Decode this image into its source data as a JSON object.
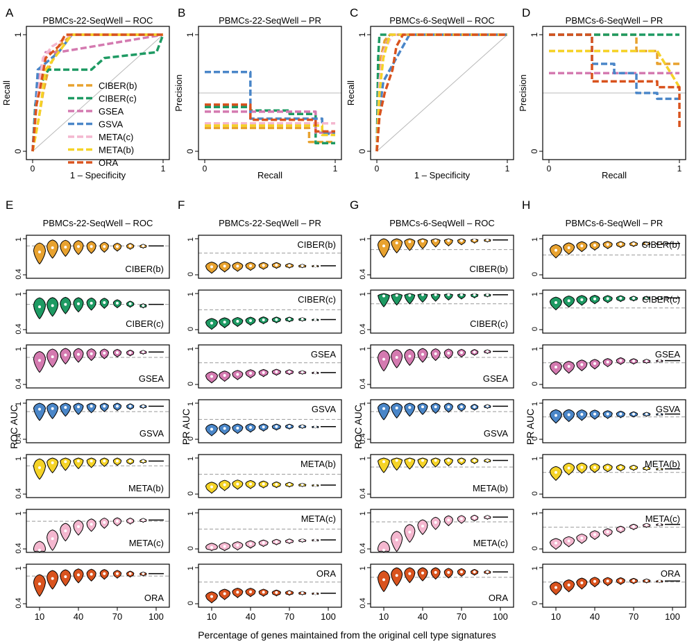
{
  "figure": {
    "xlabel": "Percentage of genes maintained from the original cell type signatures",
    "y_label_roc": "ROC AUC",
    "y_label_pr": "PR AUC"
  },
  "colors": {
    "CIBER(b)": "#e8a22f",
    "CIBER(c)": "#1e9a63",
    "GSEA": "#d47ab0",
    "GSVA": "#4a86c8",
    "META(c)": "#f4b7cf",
    "META(b)": "#f5d327",
    "ORA": "#d9531e"
  },
  "chart_data": [
    {
      "panel": "A",
      "type": "line",
      "title": "PBMCs-22-SeqWell – ROC",
      "xlabel": "1 – Specificity",
      "ylabel": "Recall",
      "xlim": [
        0,
        1
      ],
      "ylim": [
        0,
        1
      ],
      "xticks": [
        "0",
        "1"
      ],
      "yticks": [
        "0",
        "1"
      ],
      "legend": "bottom-right",
      "reference": "diagonal",
      "series": [
        {
          "name": "CIBER(b)",
          "x": [
            0,
            0.05,
            0.08,
            0.12,
            0.2,
            0.3,
            0.6,
            0.95,
            1
          ],
          "y": [
            0,
            0.3,
            0.5,
            0.7,
            0.9,
            1,
            1,
            1,
            1
          ]
        },
        {
          "name": "CIBER(c)",
          "x": [
            0,
            0.02,
            0.05,
            0.12,
            0.45,
            0.55,
            0.95,
            1
          ],
          "y": [
            0,
            0.4,
            0.55,
            0.7,
            0.7,
            0.8,
            0.85,
            1
          ]
        },
        {
          "name": "GSEA",
          "x": [
            0,
            0.02,
            0.06,
            0.1,
            0.2,
            1
          ],
          "y": [
            0,
            0.3,
            0.7,
            0.85,
            0.85,
            1
          ]
        },
        {
          "name": "GSVA",
          "x": [
            0,
            0.02,
            0.04,
            0.2,
            0.3,
            1
          ],
          "y": [
            0,
            0.35,
            0.7,
            0.85,
            1,
            1
          ]
        },
        {
          "name": "META(c)",
          "x": [
            0,
            0.03,
            0.08,
            0.15,
            0.3,
            1
          ],
          "y": [
            0,
            0.4,
            0.8,
            0.9,
            1,
            1
          ]
        },
        {
          "name": "META(b)",
          "x": [
            0,
            0.05,
            0.1,
            0.2,
            0.3,
            1
          ],
          "y": [
            0,
            0.3,
            0.7,
            0.85,
            1,
            1
          ]
        },
        {
          "name": "ORA",
          "x": [
            0,
            0.03,
            0.06,
            0.1,
            0.2,
            0.25,
            1
          ],
          "y": [
            0,
            0.4,
            0.55,
            0.8,
            0.9,
            1,
            1
          ]
        }
      ]
    },
    {
      "panel": "B",
      "type": "line",
      "title": "PBMCs-22-SeqWell – PR",
      "xlabel": "Recall",
      "ylabel": "Precision",
      "xlim": [
        0,
        1
      ],
      "ylim": [
        0,
        1
      ],
      "xticks": [
        "0",
        "1"
      ],
      "yticks": [
        "0",
        "1"
      ],
      "reference_y": 0.5,
      "series": [
        {
          "name": "CIBER(b)",
          "x": [
            0,
            0.8,
            0.8,
            1
          ],
          "y": [
            0.2,
            0.2,
            0.08,
            0.08
          ]
        },
        {
          "name": "CIBER(c)",
          "x": [
            0,
            0.35,
            0.35,
            0.65,
            0.65,
            0.85,
            0.85,
            1
          ],
          "y": [
            0.38,
            0.38,
            0.35,
            0.35,
            0.32,
            0.32,
            0.07,
            0.07
          ]
        },
        {
          "name": "GSEA",
          "x": [
            0,
            0.85,
            0.85,
            1
          ],
          "y": [
            0.34,
            0.34,
            0.16,
            0.16
          ]
        },
        {
          "name": "GSVA",
          "x": [
            0,
            0.35,
            0.35,
            0.9,
            0.9,
            1
          ],
          "y": [
            0.68,
            0.68,
            0.28,
            0.28,
            0.15,
            0.15
          ]
        },
        {
          "name": "META(c)",
          "x": [
            0,
            1
          ],
          "y": [
            0.24,
            0.24
          ]
        },
        {
          "name": "META(b)",
          "x": [
            0,
            0.9,
            0.9,
            1
          ],
          "y": [
            0.22,
            0.22,
            0.14,
            0.14
          ]
        },
        {
          "name": "ORA",
          "x": [
            0,
            0.35,
            0.35,
            0.85,
            0.85,
            1
          ],
          "y": [
            0.4,
            0.4,
            0.27,
            0.27,
            0.17,
            0.17
          ]
        }
      ]
    },
    {
      "panel": "C",
      "type": "line",
      "title": "PBMCs-6-SeqWell – ROC",
      "xlabel": "1 – Specificity",
      "ylabel": "Recall",
      "xlim": [
        0,
        1
      ],
      "ylim": [
        0,
        1
      ],
      "xticks": [
        "0",
        "1"
      ],
      "yticks": [
        "0",
        "1"
      ],
      "reference": "diagonal",
      "series": [
        {
          "name": "CIBER(b)",
          "x": [
            0,
            0.01,
            0.03,
            0.06,
            0.1,
            1
          ],
          "y": [
            0,
            0.5,
            0.8,
            0.95,
            1,
            1
          ]
        },
        {
          "name": "CIBER(c)",
          "x": [
            0,
            0.01,
            0.02,
            1
          ],
          "y": [
            0,
            0.8,
            1,
            1
          ]
        },
        {
          "name": "GSEA",
          "x": [
            0,
            0.02,
            0.05,
            0.1,
            1
          ],
          "y": [
            0,
            0.6,
            0.85,
            1,
            1
          ]
        },
        {
          "name": "GSVA",
          "x": [
            0,
            0.02,
            0.05,
            0.1,
            0.15,
            0.25,
            1
          ],
          "y": [
            0,
            0.35,
            0.6,
            0.7,
            0.8,
            1,
            1
          ]
        },
        {
          "name": "META(c)",
          "x": [
            0,
            0.02,
            0.05,
            0.12,
            1
          ],
          "y": [
            0,
            0.6,
            0.85,
            1,
            1
          ]
        },
        {
          "name": "META(b)",
          "x": [
            0,
            0.02,
            0.05,
            0.1,
            1
          ],
          "y": [
            0,
            0.5,
            0.8,
            1,
            1
          ]
        },
        {
          "name": "ORA",
          "x": [
            0,
            0.02,
            0.06,
            0.12,
            0.15,
            0.2,
            1
          ],
          "y": [
            0,
            0.3,
            0.5,
            0.7,
            0.9,
            1,
            1
          ]
        }
      ]
    },
    {
      "panel": "D",
      "type": "line",
      "title": "PBMCs-6-SeqWell – PR",
      "xlabel": "Recall",
      "ylabel": "Precision",
      "xlim": [
        0,
        1
      ],
      "ylim": [
        0,
        1
      ],
      "xticks": [
        "0",
        "1"
      ],
      "yticks": [
        "0",
        "1"
      ],
      "reference_y": 0.5,
      "series": [
        {
          "name": "CIBER(b)",
          "x": [
            0,
            0.67,
            0.67,
            0.83,
            0.83,
            1
          ],
          "y": [
            1,
            1,
            0.86,
            0.86,
            0.75,
            0.75
          ]
        },
        {
          "name": "CIBER(c)",
          "x": [
            0,
            1
          ],
          "y": [
            1,
            1
          ]
        },
        {
          "name": "GSEA",
          "x": [
            0,
            1
          ],
          "y": [
            0.67,
            0.67
          ]
        },
        {
          "name": "GSVA",
          "x": [
            0,
            0.33,
            0.33,
            0.5,
            0.5,
            0.67,
            0.67,
            0.83,
            0.83,
            1
          ],
          "y": [
            1,
            1,
            0.75,
            0.75,
            0.67,
            0.67,
            0.5,
            0.5,
            0.45,
            0.45
          ]
        },
        {
          "name": "META(c)",
          "x": [
            0,
            0.83,
            1
          ],
          "y": [
            0.86,
            0.86,
            0.55
          ]
        },
        {
          "name": "META(b)",
          "x": [
            0,
            0.83,
            1
          ],
          "y": [
            0.86,
            0.86,
            0.55
          ]
        },
        {
          "name": "ORA",
          "x": [
            0,
            0.33,
            0.33,
            0.83,
            0.83,
            1,
            1
          ],
          "y": [
            1,
            1,
            0.6,
            0.6,
            0.55,
            0.55,
            0.2
          ]
        }
      ]
    },
    {
      "panel": "E",
      "type": "violin",
      "title": "PBMCs-22-SeqWell – ROC",
      "ylabel": "ROC AUC",
      "x": [
        10,
        20,
        30,
        40,
        50,
        60,
        70,
        80,
        90,
        100
      ],
      "xticks": [
        "10",
        "40",
        "70",
        "100"
      ],
      "yticks": [
        "0.4",
        "1"
      ],
      "ylim": [
        0.4,
        1
      ],
      "series": [
        {
          "name": "CIBER(b)",
          "medians": [
            0.78,
            0.85,
            0.86,
            0.87,
            0.87,
            0.87,
            0.87,
            0.88,
            0.88,
            0.88
          ],
          "ref": 0.88
        },
        {
          "name": "CIBER(c)",
          "medians": [
            0.78,
            0.8,
            0.82,
            0.83,
            0.84,
            0.85,
            0.84,
            0.83,
            0.8,
            0.82
          ],
          "ref": 0.82
        },
        {
          "name": "GSEA",
          "medians": [
            0.8,
            0.86,
            0.89,
            0.9,
            0.91,
            0.92,
            0.93,
            0.93,
            0.94,
            0.94
          ],
          "ref": 0.85
        },
        {
          "name": "GSVA",
          "medians": [
            0.9,
            0.91,
            0.93,
            0.94,
            0.95,
            0.95,
            0.95,
            0.95,
            0.95,
            0.95
          ],
          "ref": 0.86
        },
        {
          "name": "META(b)",
          "medians": [
            0.84,
            0.92,
            0.94,
            0.95,
            0.95,
            0.95,
            0.95,
            0.95,
            0.95,
            0.95
          ],
          "ref": 0.87
        },
        {
          "name": "META(c)",
          "medians": [
            0.38,
            0.57,
            0.7,
            0.77,
            0.81,
            0.84,
            0.86,
            0.87,
            0.88,
            0.88
          ],
          "ref": 0.86
        },
        {
          "name": "ORA",
          "medians": [
            0.73,
            0.82,
            0.85,
            0.88,
            0.89,
            0.9,
            0.9,
            0.9,
            0.9,
            0.9
          ],
          "ref": 0.86
        }
      ]
    },
    {
      "panel": "F",
      "type": "violin",
      "title": "PBMCs-22-SeqWell – PR",
      "ylabel": "PR AUC",
      "x": [
        10,
        20,
        30,
        40,
        50,
        60,
        70,
        80,
        90,
        100
      ],
      "xticks": [
        "10",
        "40",
        "70",
        "100"
      ],
      "yticks": [
        "0",
        "1"
      ],
      "ylim": [
        0,
        1
      ],
      "series": [
        {
          "name": "CIBER(b)",
          "medians": [
            0.22,
            0.24,
            0.24,
            0.25,
            0.26,
            0.27,
            0.26,
            0.25,
            0.25,
            0.25
          ],
          "ref": 0.6
        },
        {
          "name": "CIBER(c)",
          "medians": [
            0.18,
            0.21,
            0.23,
            0.25,
            0.27,
            0.28,
            0.29,
            0.29,
            0.28,
            0.28
          ],
          "ref": 0.55
        },
        {
          "name": "GSEA",
          "medians": [
            0.22,
            0.25,
            0.28,
            0.31,
            0.33,
            0.35,
            0.35,
            0.34,
            0.33,
            0.33
          ],
          "ref": 0.6
        },
        {
          "name": "GSVA",
          "medians": [
            0.28,
            0.3,
            0.31,
            0.33,
            0.34,
            0.35,
            0.36,
            0.36,
            0.35,
            0.35
          ],
          "ref": 0.55
        },
        {
          "name": "META(b)",
          "medians": [
            0.2,
            0.26,
            0.28,
            0.28,
            0.28,
            0.27,
            0.27,
            0.26,
            0.25,
            0.25
          ],
          "ref": 0.55
        },
        {
          "name": "META(c)",
          "medians": [
            0.04,
            0.07,
            0.1,
            0.14,
            0.17,
            0.2,
            0.22,
            0.24,
            0.25,
            0.25
          ],
          "ref": 0.55
        },
        {
          "name": "ORA",
          "medians": [
            0.2,
            0.28,
            0.32,
            0.33,
            0.32,
            0.31,
            0.31,
            0.3,
            0.29,
            0.29
          ],
          "ref": 0.6
        }
      ]
    },
    {
      "panel": "G",
      "type": "violin",
      "title": "PBMCs-6-SeqWell – ROC",
      "ylabel": "ROC AUC",
      "x": [
        10,
        20,
        30,
        40,
        50,
        60,
        70,
        80,
        90,
        100
      ],
      "xticks": [
        "10",
        "40",
        "70",
        "100"
      ],
      "yticks": [
        "0.4",
        "1"
      ],
      "ylim": [
        0.4,
        1
      ],
      "series": [
        {
          "name": "CIBER(b)",
          "medians": [
            0.88,
            0.93,
            0.95,
            0.96,
            0.97,
            0.97,
            0.97,
            0.98,
            0.98,
            0.98
          ],
          "ref": 0.82
        },
        {
          "name": "CIBER(c)",
          "medians": [
            0.96,
            0.97,
            0.97,
            0.98,
            0.98,
            0.98,
            0.98,
            0.98,
            0.98,
            0.98
          ],
          "ref": 0.83
        },
        {
          "name": "GSEA",
          "medians": [
            0.82,
            0.85,
            0.87,
            0.9,
            0.91,
            0.92,
            0.93,
            0.94,
            0.95,
            0.95
          ],
          "ref": 0.85
        },
        {
          "name": "GSVA",
          "medians": [
            0.91,
            0.92,
            0.93,
            0.94,
            0.94,
            0.94,
            0.94,
            0.94,
            0.95,
            0.95
          ],
          "ref": 0.86
        },
        {
          "name": "META(b)",
          "medians": [
            0.94,
            0.96,
            0.96,
            0.96,
            0.96,
            0.96,
            0.96,
            0.96,
            0.96,
            0.96
          ],
          "ref": 0.85
        },
        {
          "name": "META(c)",
          "medians": [
            0.38,
            0.55,
            0.68,
            0.78,
            0.84,
            0.88,
            0.9,
            0.92,
            0.93,
            0.93
          ],
          "ref": 0.85
        },
        {
          "name": "ORA",
          "medians": [
            0.8,
            0.87,
            0.9,
            0.91,
            0.92,
            0.92,
            0.93,
            0.93,
            0.93,
            0.93
          ],
          "ref": 0.84
        }
      ]
    },
    {
      "panel": "H",
      "type": "violin",
      "title": "PBMCs-6-SeqWell – PR",
      "ylabel": "PR AUC",
      "x": [
        10,
        20,
        30,
        40,
        50,
        60,
        70,
        80,
        90,
        100
      ],
      "xticks": [
        "10",
        "40",
        "70",
        "100"
      ],
      "yticks": [
        "0",
        "1"
      ],
      "ylim": [
        0,
        1
      ],
      "series": [
        {
          "name": "CIBER(b)",
          "medians": [
            0.68,
            0.75,
            0.8,
            0.82,
            0.84,
            0.85,
            0.86,
            0.87,
            0.87,
            0.87
          ],
          "ref": 0.55
        },
        {
          "name": "CIBER(c)",
          "medians": [
            0.75,
            0.8,
            0.83,
            0.85,
            0.86,
            0.87,
            0.87,
            0.88,
            0.88,
            0.88
          ],
          "ref": 0.6
        },
        {
          "name": "GSEA",
          "medians": [
            0.48,
            0.5,
            0.55,
            0.58,
            0.62,
            0.66,
            0.65,
            0.65,
            0.66,
            0.66
          ],
          "ref": 0.6
        },
        {
          "name": "GSVA",
          "medians": [
            0.66,
            0.68,
            0.69,
            0.7,
            0.7,
            0.7,
            0.7,
            0.7,
            0.7,
            0.7
          ],
          "ref": 0.62
        },
        {
          "name": "META(b)",
          "medians": [
            0.6,
            0.72,
            0.74,
            0.74,
            0.74,
            0.74,
            0.74,
            0.72,
            0.7,
            0.7
          ],
          "ref": 0.6
        },
        {
          "name": "META(c)",
          "medians": [
            0.16,
            0.22,
            0.3,
            0.4,
            0.47,
            0.55,
            0.62,
            0.66,
            0.68,
            0.68
          ],
          "ref": 0.6
        },
        {
          "name": "ORA",
          "medians": [
            0.45,
            0.52,
            0.58,
            0.62,
            0.63,
            0.64,
            0.64,
            0.64,
            0.63,
            0.63
          ],
          "ref": 0.6
        }
      ]
    }
  ]
}
